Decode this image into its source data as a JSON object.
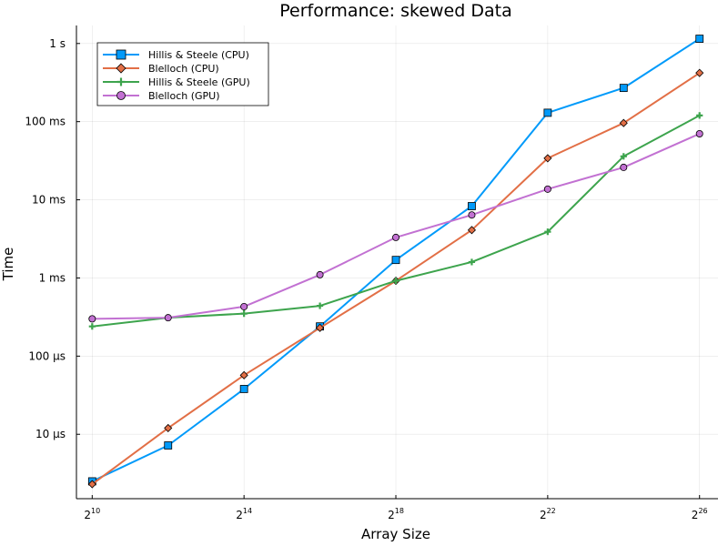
{
  "chart_data": {
    "type": "line",
    "title": "Performance: skewed Data",
    "xlabel": "Array Size",
    "ylabel": "Time",
    "x_scale": "log2",
    "y_scale": "log10",
    "x": [
      1024,
      4096,
      16384,
      65536,
      262144,
      1048576,
      4194304,
      16777216,
      67108864
    ],
    "x_ticks": [
      {
        "value": 1024,
        "base": "2",
        "exp": "10"
      },
      {
        "value": 16384,
        "base": "2",
        "exp": "14"
      },
      {
        "value": 262144,
        "base": "2",
        "exp": "18"
      },
      {
        "value": 4194304,
        "base": "2",
        "exp": "22"
      },
      {
        "value": 67108864,
        "base": "2",
        "exp": "26"
      }
    ],
    "y_ticks": [
      {
        "value": 1e-05,
        "label": "10 µs"
      },
      {
        "value": 0.0001,
        "label": "100 µs"
      },
      {
        "value": 0.001,
        "label": "1 ms"
      },
      {
        "value": 0.01,
        "label": "10 ms"
      },
      {
        "value": 0.1,
        "label": "100 ms"
      },
      {
        "value": 1,
        "label": "1 s"
      }
    ],
    "xlim": [
      768,
      94000000
    ],
    "ylim": [
      1.5e-06,
      1.7
    ],
    "grid": true,
    "legend_position": "top-left",
    "series": [
      {
        "name": "Hillis & Steele (CPU)",
        "color": "#009AFA",
        "marker": "square",
        "values": [
          2.5e-06,
          7.2e-06,
          3.8e-05,
          0.00024,
          0.0017,
          0.0083,
          0.13,
          0.27,
          1.15
        ]
      },
      {
        "name": "Blelloch (CPU)",
        "color": "#E26F46",
        "marker": "diamond",
        "values": [
          2.3e-06,
          1.2e-05,
          5.7e-05,
          0.00023,
          0.00092,
          0.0041,
          0.034,
          0.096,
          0.42
        ]
      },
      {
        "name": "Hillis & Steele (GPU)",
        "color": "#3DA44D",
        "marker": "cross",
        "values": [
          0.00024,
          0.00031,
          0.00035,
          0.00044,
          0.00092,
          0.0016,
          0.0039,
          0.036,
          0.12
        ]
      },
      {
        "name": "Blelloch (GPU)",
        "color": "#C271D2",
        "marker": "circle",
        "values": [
          0.0003,
          0.00031,
          0.00043,
          0.0011,
          0.0033,
          0.0064,
          0.0137,
          0.026,
          0.07
        ]
      }
    ]
  }
}
